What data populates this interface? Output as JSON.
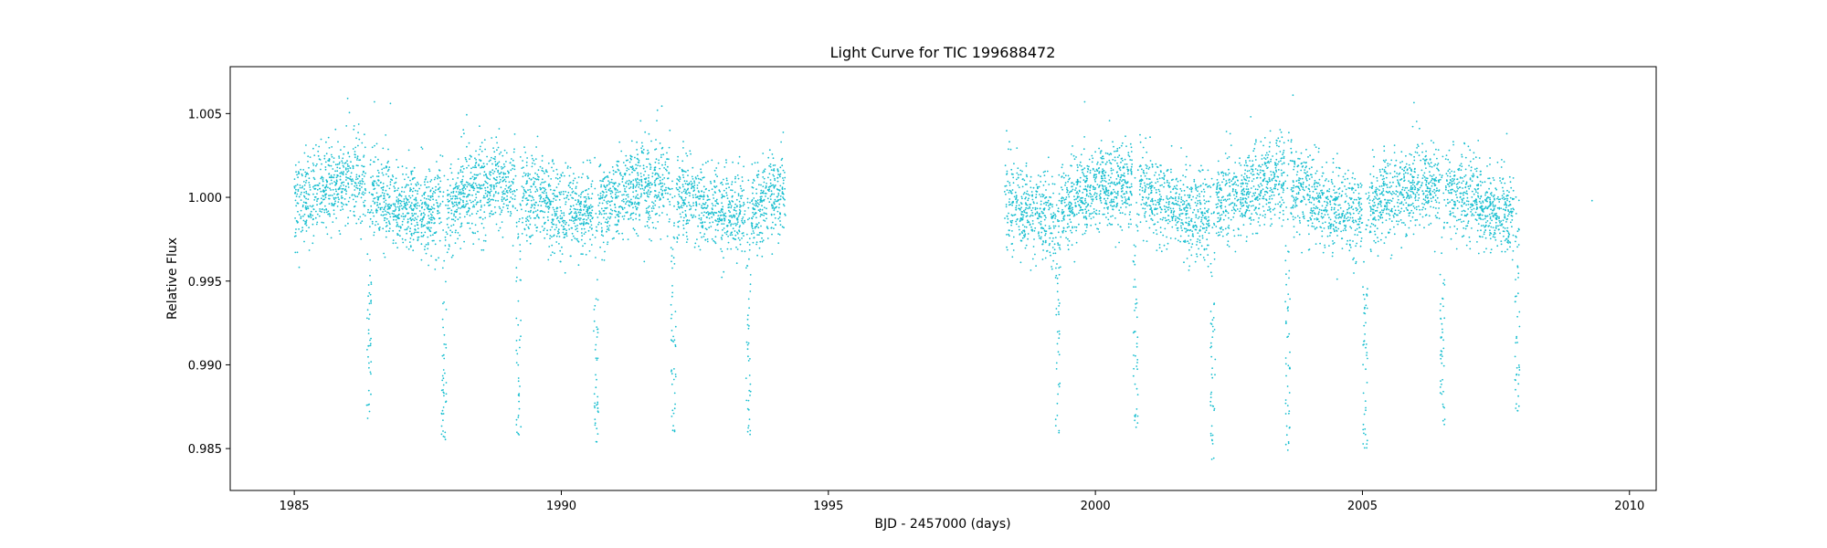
{
  "chart_data": {
    "type": "scatter",
    "title": "Light Curve for TIC 199688472",
    "xlabel": "BJD - 2457000 (days)",
    "ylabel": "Relative Flux",
    "xlim": [
      1983.8,
      2010.5
    ],
    "ylim": [
      0.9825,
      1.0078
    ],
    "xticks": [
      1985,
      1990,
      1995,
      2000,
      2005,
      2010
    ],
    "yticks": [
      0.985,
      0.99,
      0.995,
      1.0,
      1.005
    ],
    "xtick_labels": [
      "1985",
      "1990",
      "1995",
      "2000",
      "2005",
      "2010"
    ],
    "ytick_labels": [
      "0.985",
      "0.990",
      "0.995",
      "1.000",
      "1.005"
    ],
    "grid": false,
    "marker_color": "#17becf",
    "baseline_flux": 1.0,
    "typical_scatter": 0.0013,
    "segments": [
      {
        "x_start": 1985.0,
        "x_end": 1994.2
      },
      {
        "x_start": 1998.3,
        "x_end": 2007.9
      }
    ],
    "transit_times": [
      1986.4,
      1987.8,
      1989.2,
      1990.65,
      1992.1,
      1993.5,
      1999.3,
      2000.75,
      2002.2,
      2003.6,
      2005.05,
      2006.5,
      2007.9
    ],
    "transit_min_flux": [
      0.9867,
      0.9855,
      0.9858,
      0.9845,
      0.9862,
      0.9853,
      0.9855,
      0.9865,
      0.9842,
      0.9851,
      0.9843,
      0.9863,
      0.9868
    ],
    "outliers": [
      {
        "x": 1986.0,
        "y": 1.0059
      },
      {
        "x": 1986.5,
        "y": 1.0057
      },
      {
        "x": 1986.8,
        "y": 1.0056
      },
      {
        "x": 1991.8,
        "y": 1.0052
      },
      {
        "x": 1999.8,
        "y": 1.0057
      },
      {
        "x": 2003.7,
        "y": 1.0061
      },
      {
        "x": 2009.3,
        "y": 0.9998
      }
    ]
  }
}
